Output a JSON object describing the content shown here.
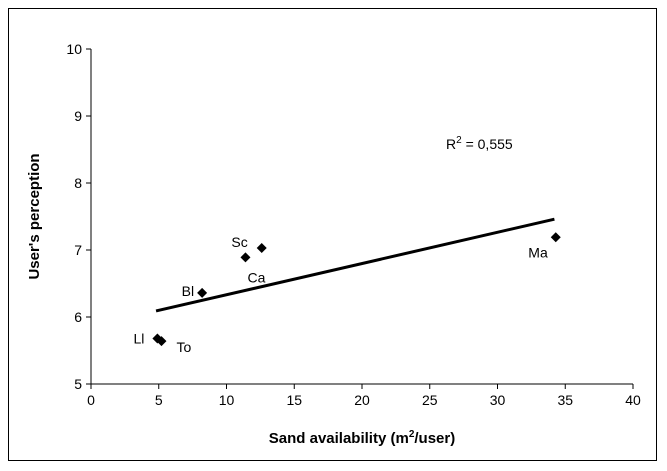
{
  "chart_data": {
    "type": "scatter",
    "xlabel": "Sand availability (m²/user)",
    "xlabel_main": "Sand availability (m",
    "xlabel_sup": "2",
    "xlabel_tail": "/user)",
    "ylabel": "User's perception",
    "xlim": [
      0,
      40
    ],
    "ylim": [
      5,
      10
    ],
    "xticks": [
      0,
      5,
      10,
      15,
      20,
      25,
      30,
      35,
      40
    ],
    "yticks": [
      5,
      6,
      7,
      8,
      9,
      10
    ],
    "grid": false,
    "points": [
      {
        "label": "Ll",
        "x": 4.9,
        "y": 5.68
      },
      {
        "label": "To",
        "x": 5.2,
        "y": 5.64
      },
      {
        "label": "Bl",
        "x": 8.2,
        "y": 6.36
      },
      {
        "label": "Sc",
        "x": 12.6,
        "y": 7.03
      },
      {
        "label": "Ca",
        "x": 11.4,
        "y": 6.89
      },
      {
        "label": "Ma",
        "x": 34.3,
        "y": 7.19
      }
    ],
    "trendline": {
      "x": [
        4.8,
        34.2
      ],
      "y": [
        6.09,
        7.46
      ]
    },
    "annotation": {
      "text_main": "R",
      "text_sup": "2",
      "text_tail": " = 0,555",
      "x": 26.2,
      "y": 8.58
    }
  }
}
